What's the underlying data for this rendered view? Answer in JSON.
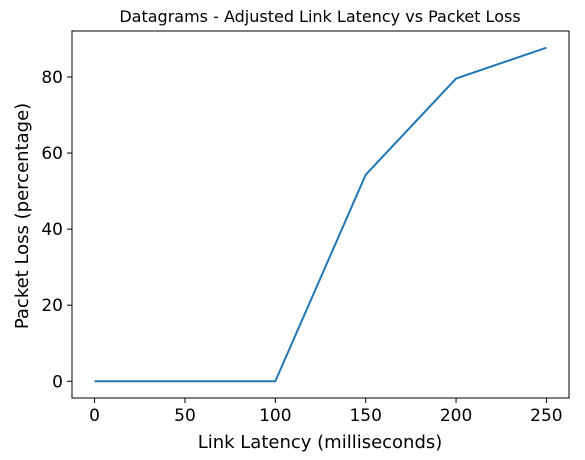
{
  "chart_data": {
    "type": "line",
    "title": "Datagrams - Adjusted Link Latency vs Packet Loss",
    "xlabel": "Link Latency (milliseconds)",
    "ylabel": "Packet Loss (percentage)",
    "x": [
      0,
      50,
      100,
      150,
      200,
      250
    ],
    "series": [
      {
        "values": [
          0,
          0,
          0,
          54.3,
          79.6,
          87.7
        ]
      }
    ],
    "xticks": [
      0,
      50,
      100,
      150,
      200,
      250
    ],
    "yticks": [
      0,
      20,
      40,
      60,
      80
    ],
    "xlim": [
      -12.5,
      262.5
    ],
    "ylim": [
      -4.4,
      92.1
    ],
    "grid": false,
    "colors": {
      "line": "#1f77b4",
      "axes": "#000000"
    }
  }
}
